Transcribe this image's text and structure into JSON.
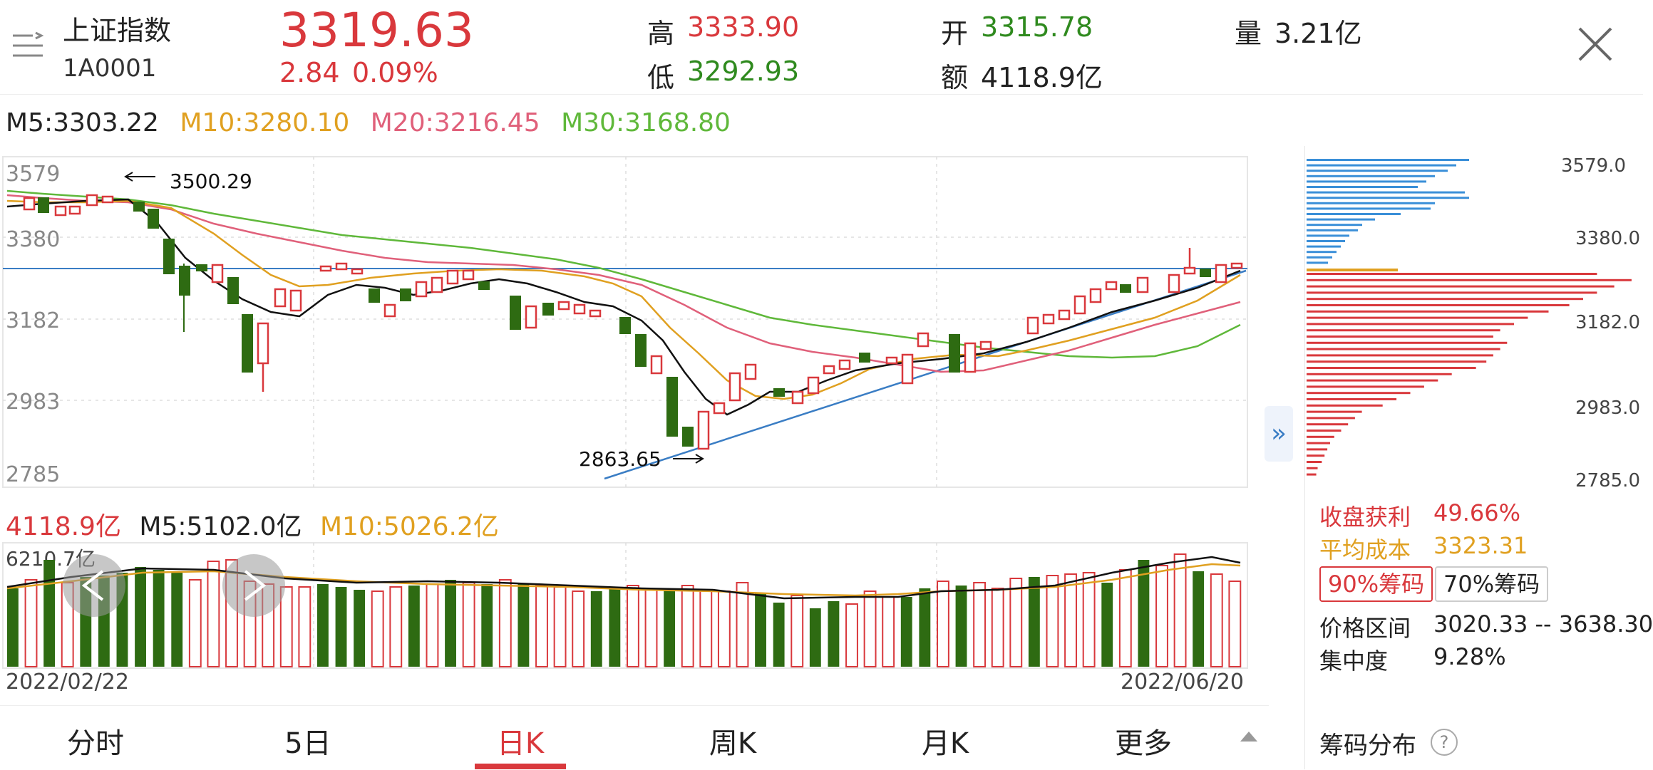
{
  "header": {
    "index_name": "上证指数",
    "index_code": "1A0001",
    "price": "3319.63",
    "change": "2.84",
    "change_pct": "0.09%",
    "high_label": "高",
    "high": "3333.90",
    "low_label": "低",
    "low": "3292.93",
    "open_label": "开",
    "open": "3315.78",
    "amount_label": "额",
    "amount": "4118.9亿",
    "volume_label": "量",
    "volume": "3.21亿"
  },
  "ma": {
    "m5": "M5:3303.22",
    "m10": "M10:3280.10",
    "m20": "M20:3216.45",
    "m30": "M30:3168.80"
  },
  "kline": {
    "y_ticks": [
      "3579",
      "3380",
      "3182",
      "2983",
      "2785"
    ],
    "annot_high": "3500.29",
    "annot_low": "2863.65",
    "expand_icon_label": "»"
  },
  "volume_chart": {
    "amount": "4118.9亿",
    "m5": "M5:5102.0亿",
    "m10": "M10:5026.2亿",
    "max_label": "6210.7亿",
    "start_date": "2022/02/22",
    "end_date": "2022/06/20"
  },
  "chips": {
    "price_labels": [
      "3579.0",
      "3380.0",
      "3182.0",
      "2983.0",
      "2785.0"
    ],
    "profit_label": "收盘获利",
    "profit_value": "49.66%",
    "avg_cost_label": "平均成本",
    "avg_cost_value": "3323.31",
    "btn_90": "90%筹码",
    "btn_70": "70%筹码",
    "range_label": "价格区间",
    "range_value": "3020.33 -- 3638.30",
    "concentration_label": "集中度",
    "concentration_value": "9.28%",
    "title": "筹码分布",
    "help_icon": "?"
  },
  "tabs": [
    "分时",
    "5日",
    "日K",
    "周K",
    "月K",
    "更多"
  ],
  "active_tab": "日K",
  "colors": {
    "up": "#d9383c",
    "down": "#2e6b12",
    "ma5": "#111111",
    "ma10": "#e0a020",
    "ma20": "#e0607a",
    "ma30": "#5fb83a",
    "chip_upper": "#3a8fd8",
    "chip_lower": "#d9383c"
  }
}
